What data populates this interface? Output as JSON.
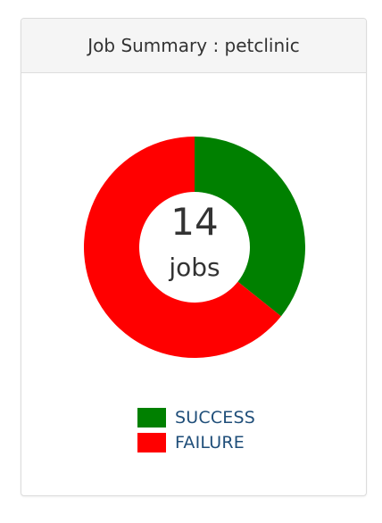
{
  "panel": {
    "title": "Job Summary : petclinic"
  },
  "center": {
    "count": "14",
    "unit": "jobs"
  },
  "chart_data": {
    "type": "pie",
    "categories": [
      "SUCCESS",
      "FAILURE"
    ],
    "values": [
      5,
      9
    ],
    "colors": [
      "#008000",
      "#ff0000"
    ],
    "title": "",
    "legend_position": "bottom-center"
  },
  "legend": [
    {
      "label": "SUCCESS",
      "color": "#008000"
    },
    {
      "label": "FAILURE",
      "color": "#ff0000"
    }
  ]
}
